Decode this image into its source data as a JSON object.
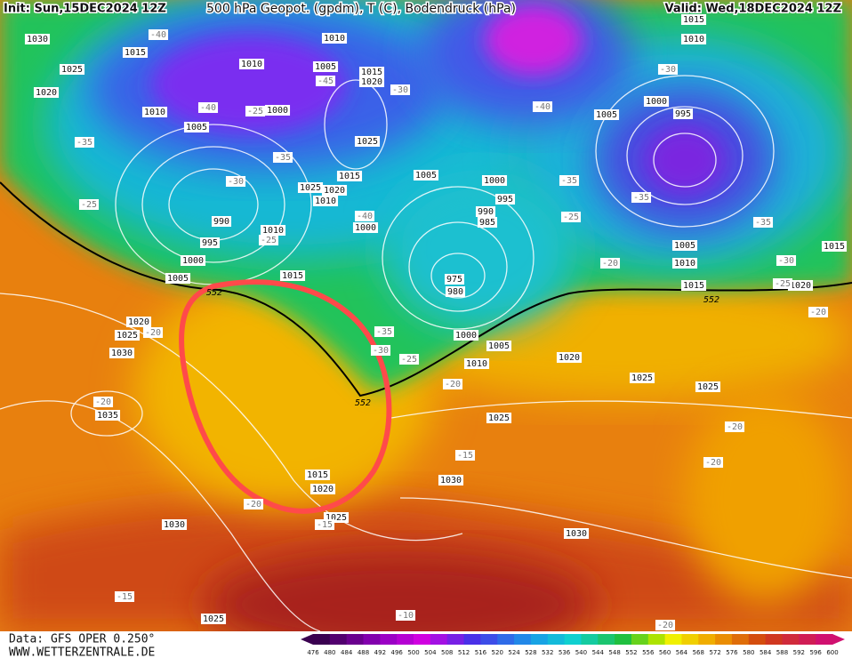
{
  "header": {
    "init": "Init: Sun,15DEC2024 12Z",
    "title": "500 hPa Geopot. (gpdm), T (C), Bodendruck (hPa)",
    "valid": "Valid: Wed,18DEC2024 12Z"
  },
  "footer": {
    "data": "Data: GFS OPER 0.250°",
    "site": "WWW.WETTERZENTRALE.DE"
  },
  "colorbar": {
    "labels": [
      476,
      480,
      484,
      488,
      492,
      496,
      500,
      504,
      508,
      512,
      516,
      520,
      524,
      528,
      532,
      536,
      540,
      544,
      548,
      552,
      556,
      560,
      564,
      568,
      572,
      576,
      580,
      584,
      588,
      592,
      596,
      600
    ]
  },
  "isobar_labels": [
    "1030",
    "1015",
    "1010",
    "1010",
    "1005",
    "1015",
    "1020",
    "1025",
    "1020",
    "1010",
    "1005",
    "1000",
    "1025",
    "1015",
    "1025",
    "1020",
    "1010",
    "990",
    "1010",
    "995",
    "1000",
    "1005",
    "1015",
    "1005",
    "1000",
    "1000",
    "995",
    "990",
    "985",
    "975",
    "980",
    "1000",
    "1005",
    "1010",
    "1020",
    "1025",
    "1025",
    "1005",
    "1000",
    "995",
    "1010",
    "1015",
    "1005",
    "1010",
    "1015",
    "1015",
    "1020",
    "1020",
    "1025",
    "1030",
    "1035",
    "1025",
    "1015",
    "1020",
    "1025",
    "1030",
    "1030",
    "1030",
    "1025"
  ],
  "temperature_labels": [
    "-40",
    "-45",
    "-40",
    "-25",
    "-30",
    "-30",
    "-35",
    "-25",
    "-35",
    "-25",
    "-40",
    "-35",
    "-30",
    "-25",
    "-20",
    "-40",
    "-35",
    "-25",
    "-20",
    "-30",
    "-35",
    "-35",
    "-30",
    "-25",
    "-20",
    "-20",
    "-20",
    "-15",
    "-15",
    "-20",
    "-20",
    "-15",
    "-10",
    "-20",
    "-20"
  ],
  "geopotential_labels": [
    "552",
    "552",
    "552"
  ]
}
